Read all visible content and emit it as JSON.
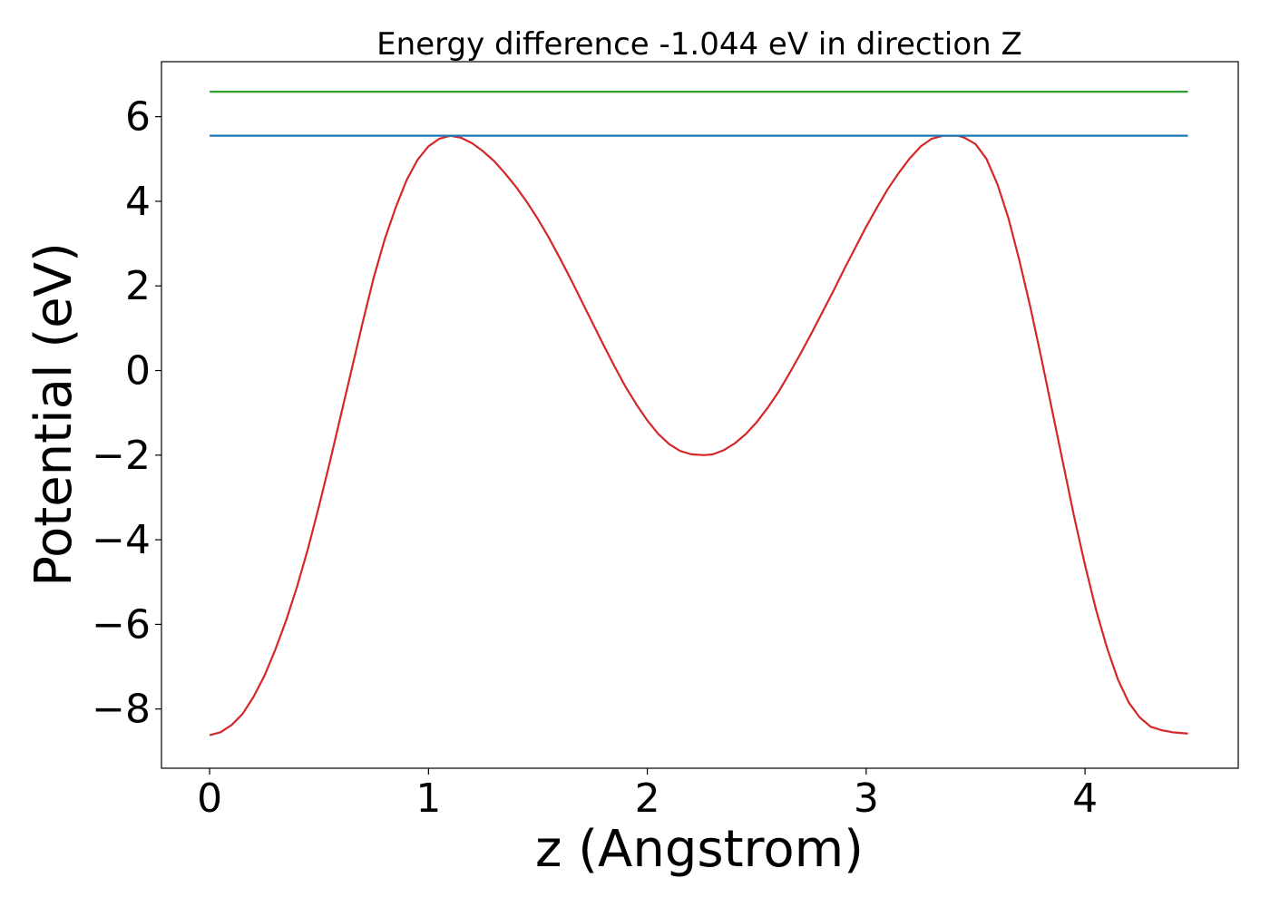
{
  "chart_data": {
    "type": "line",
    "title": "Energy difference -1.044 eV in direction Z",
    "xlabel": "z (Angstrom)",
    "ylabel": "Potential (eV)",
    "xlim": [
      -0.22,
      4.7
    ],
    "ylim": [
      -9.4,
      7.3
    ],
    "xticks": [
      0,
      1,
      2,
      3,
      4
    ],
    "xtick_labels": [
      "0",
      "1",
      "2",
      "3",
      "4"
    ],
    "yticks": [
      -8,
      -6,
      -4,
      -2,
      0,
      2,
      4,
      6
    ],
    "ytick_labels": [
      "−8",
      "−6",
      "−4",
      "−2",
      "0",
      "2",
      "4",
      "6"
    ],
    "grid": false,
    "series": [
      {
        "color": "#d62728",
        "x": [
          0,
          0.05,
          0.1,
          0.15,
          0.2,
          0.25,
          0.3,
          0.35,
          0.4,
          0.45,
          0.5,
          0.55,
          0.6,
          0.65,
          0.7,
          0.75,
          0.8,
          0.85,
          0.9,
          0.95,
          1.0,
          1.05,
          1.1,
          1.15,
          1.2,
          1.25,
          1.3,
          1.35,
          1.4,
          1.45,
          1.5,
          1.55,
          1.6,
          1.65,
          1.7,
          1.75,
          1.8,
          1.85,
          1.9,
          1.95,
          2.0,
          2.05,
          2.1,
          2.15,
          2.2,
          2.26,
          2.3,
          2.35,
          2.4,
          2.45,
          2.5,
          2.55,
          2.6,
          2.65,
          2.7,
          2.75,
          2.8,
          2.85,
          2.9,
          2.95,
          3.0,
          3.05,
          3.1,
          3.15,
          3.2,
          3.25,
          3.3,
          3.35,
          3.42,
          3.45,
          3.5,
          3.55,
          3.6,
          3.65,
          3.7,
          3.75,
          3.8,
          3.85,
          3.9,
          3.95,
          4.0,
          4.05,
          4.1,
          4.15,
          4.2,
          4.25,
          4.3,
          4.35,
          4.4,
          4.47
        ],
        "y": [
          -8.62,
          -8.55,
          -8.38,
          -8.12,
          -7.72,
          -7.22,
          -6.6,
          -5.9,
          -5.1,
          -4.2,
          -3.2,
          -2.15,
          -1.05,
          0.05,
          1.15,
          2.2,
          3.1,
          3.85,
          4.5,
          4.98,
          5.3,
          5.48,
          5.55,
          5.5,
          5.37,
          5.18,
          4.95,
          4.66,
          4.34,
          3.98,
          3.58,
          3.14,
          2.66,
          2.16,
          1.64,
          1.12,
          0.6,
          0.1,
          -0.38,
          -0.8,
          -1.18,
          -1.5,
          -1.74,
          -1.9,
          -1.98,
          -2.0,
          -1.98,
          -1.88,
          -1.72,
          -1.5,
          -1.22,
          -0.88,
          -0.5,
          -0.06,
          0.4,
          0.88,
          1.38,
          1.88,
          2.4,
          2.9,
          3.4,
          3.86,
          4.3,
          4.68,
          5.02,
          5.3,
          5.48,
          5.55,
          5.55,
          5.5,
          5.35,
          5.0,
          4.4,
          3.6,
          2.6,
          1.5,
          0.3,
          -0.95,
          -2.2,
          -3.45,
          -4.6,
          -5.65,
          -6.55,
          -7.3,
          -7.85,
          -8.2,
          -8.42,
          -8.5,
          -8.55,
          -8.58
        ]
      },
      {
        "color": "#1f77b4",
        "x": [
          0,
          4.47
        ],
        "y": [
          5.55,
          5.55
        ]
      },
      {
        "color": "#2ca02c",
        "x": [
          0,
          4.47
        ],
        "y": [
          6.59,
          6.59
        ]
      }
    ]
  }
}
